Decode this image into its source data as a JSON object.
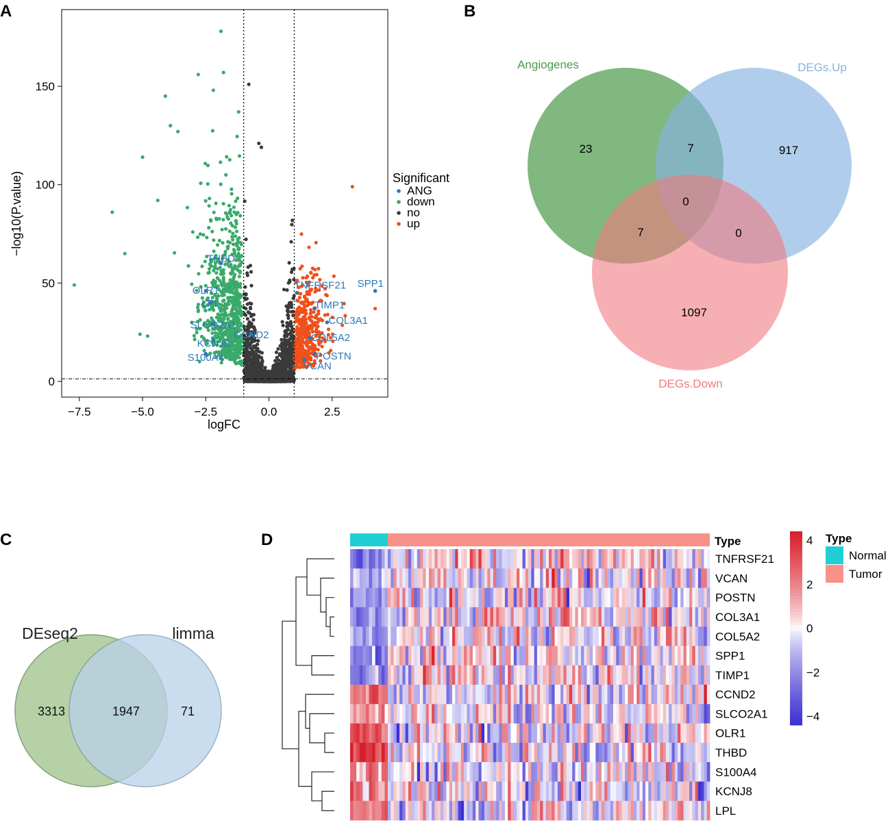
{
  "panels": {
    "a": "A",
    "b": "B",
    "c": "C",
    "d": "D"
  },
  "chart_data": [
    {
      "id": "volcano",
      "type": "scatter",
      "title": "",
      "xlabel": "logFC",
      "ylabel": "−log10(P.value)",
      "xlim": [
        -8.2,
        4.7
      ],
      "ylim": [
        -8,
        189
      ],
      "xticks": [
        -7.5,
        -5.0,
        -2.5,
        0.0,
        2.5
      ],
      "xtick_labels": [
        "−7.5",
        "−5.0",
        "−2.5",
        "0.0",
        "2.5"
      ],
      "yticks": [
        0,
        50,
        100,
        150
      ],
      "ytick_labels": [
        "0",
        "50",
        "100",
        "150"
      ],
      "vlines": [
        -1,
        1
      ],
      "hline": 1.3,
      "legend": {
        "title": "Significant",
        "placement": "right",
        "entries": [
          {
            "label": "ANG",
            "color": "#2b78b8"
          },
          {
            "label": "down",
            "color": "#3aaa6a"
          },
          {
            "label": "no",
            "color": "#3a3a3a"
          },
          {
            "label": "up",
            "color": "#f0501c"
          }
        ]
      },
      "colors": {
        "ANG": "#2b78b8",
        "down": "#3aaa6a",
        "no": "#3a3a3a",
        "up": "#f0501c"
      },
      "outliers": [
        {
          "group": "down",
          "x": -7.7,
          "y": 49
        },
        {
          "group": "down",
          "x": -6.2,
          "y": 86
        },
        {
          "group": "down",
          "x": -5.7,
          "y": 65
        },
        {
          "group": "down",
          "x": -5.0,
          "y": 114
        },
        {
          "group": "down",
          "x": -4.4,
          "y": 92
        },
        {
          "group": "down",
          "x": -4.1,
          "y": 145
        },
        {
          "group": "down",
          "x": -3.9,
          "y": 130
        },
        {
          "group": "down",
          "x": -3.6,
          "y": 127
        },
        {
          "group": "down",
          "x": -2.8,
          "y": 156
        },
        {
          "group": "down",
          "x": -2.2,
          "y": 148
        },
        {
          "group": "down",
          "x": -1.9,
          "y": 178
        },
        {
          "group": "down",
          "x": -1.8,
          "y": 157
        },
        {
          "group": "down",
          "x": -1.2,
          "y": 137
        },
        {
          "group": "no",
          "x": -0.8,
          "y": 151
        },
        {
          "group": "no",
          "x": -0.4,
          "y": 121
        },
        {
          "group": "no",
          "x": -0.3,
          "y": 119
        },
        {
          "group": "up",
          "x": 3.3,
          "y": 99
        },
        {
          "group": "up",
          "x": 4.2,
          "y": 37
        },
        {
          "group": "down",
          "x": -5.1,
          "y": 24
        },
        {
          "group": "down",
          "x": -4.8,
          "y": 23
        }
      ],
      "ang_genes": [
        {
          "label": "SPP1",
          "x": 4.2,
          "y": 46
        },
        {
          "label": "TNFRSF21",
          "x": 1.1,
          "y": 45
        },
        {
          "label": "TIMP1",
          "x": 1.8,
          "y": 37
        },
        {
          "label": "COL3A1",
          "x": 2.3,
          "y": 30
        },
        {
          "label": "COL5A2",
          "x": 1.6,
          "y": 22
        },
        {
          "label": "POSTN",
          "x": 1.8,
          "y": 14
        },
        {
          "label": "VCAN",
          "x": 1.4,
          "y": 11
        },
        {
          "label": "THBD",
          "x": -1.9,
          "y": 60
        },
        {
          "label": "OLR1",
          "x": -2.5,
          "y": 46
        },
        {
          "label": "LPL",
          "x": -2.3,
          "y": 40
        },
        {
          "label": "SLCO2A1",
          "x": -2.2,
          "y": 29
        },
        {
          "label": "CCND2",
          "x": -0.7,
          "y": 24
        },
        {
          "label": "KCNJ8",
          "x": -2.2,
          "y": 21
        },
        {
          "label": "S100A4",
          "x": -2.5,
          "y": 14
        }
      ]
    },
    {
      "id": "venn3",
      "type": "venn",
      "sets": [
        {
          "name": "Angiogenes",
          "color": "#4a9a4a"
        },
        {
          "name": "DEGs.Up",
          "color": "#86b3e0"
        },
        {
          "name": "DEGs.Down",
          "color": "#f07a80"
        }
      ],
      "regions": [
        {
          "sets": [
            "Angiogenes"
          ],
          "value": "23"
        },
        {
          "sets": [
            "Angiogenes",
            "DEGs.Up"
          ],
          "value": "7"
        },
        {
          "sets": [
            "DEGs.Up"
          ],
          "value": "917"
        },
        {
          "sets": [
            "Angiogenes",
            "DEGs.Up",
            "DEGs.Down"
          ],
          "value": "0"
        },
        {
          "sets": [
            "Angiogenes",
            "DEGs.Down"
          ],
          "value": "7"
        },
        {
          "sets": [
            "DEGs.Up",
            "DEGs.Down"
          ],
          "value": "0"
        },
        {
          "sets": [
            "DEGs.Down"
          ],
          "value": "1097"
        }
      ]
    },
    {
      "id": "venn2",
      "type": "venn",
      "sets": [
        {
          "name": "DEseq2",
          "color": "#a9c996"
        },
        {
          "name": "limma",
          "color": "#b9d2ea"
        }
      ],
      "regions": [
        {
          "sets": [
            "DEseq2"
          ],
          "value": "3313"
        },
        {
          "sets": [
            "DEseq2",
            "limma"
          ],
          "value": "1947"
        },
        {
          "sets": [
            "limma"
          ],
          "value": "71"
        }
      ]
    },
    {
      "id": "heatmap",
      "type": "heatmap",
      "annotation_title": "Type",
      "groups": [
        {
          "name": "Normal",
          "color": "#1fcfd4",
          "count": 12
        },
        {
          "name": "Tumor",
          "color": "#f7918a",
          "count": 110
        }
      ],
      "genes": [
        "TNFRSF21",
        "VCAN",
        "POSTN",
        "COL3A1",
        "COL5A2",
        "SPP1",
        "TIMP1",
        "CCND2",
        "SLCO2A1",
        "OLR1",
        "THBD",
        "S100A4",
        "KCNJ8",
        "LPL"
      ],
      "normal_mean": [
        -2,
        -1.2,
        -1.5,
        -1.8,
        -1.4,
        -2.2,
        -2.0,
        2.2,
        1.8,
        2.6,
        3.2,
        1.6,
        1.4,
        1.9
      ],
      "tumor_mean": [
        0.2,
        0.1,
        0.15,
        0.2,
        0.15,
        0.25,
        0.2,
        -0.25,
        -0.2,
        -0.3,
        -0.35,
        -0.15,
        -0.15,
        -0.2
      ],
      "colorbar": {
        "min": -4,
        "max": 4,
        "ticks": [
          4,
          2,
          0,
          -2,
          -4
        ],
        "tick_labels": [
          "4",
          "2",
          "0",
          "−2",
          "−4"
        ]
      },
      "colors": {
        "low": "#3b2fd1",
        "mid": "#ffffff",
        "high": "#d81e2a"
      },
      "legend_title": "Type"
    }
  ]
}
